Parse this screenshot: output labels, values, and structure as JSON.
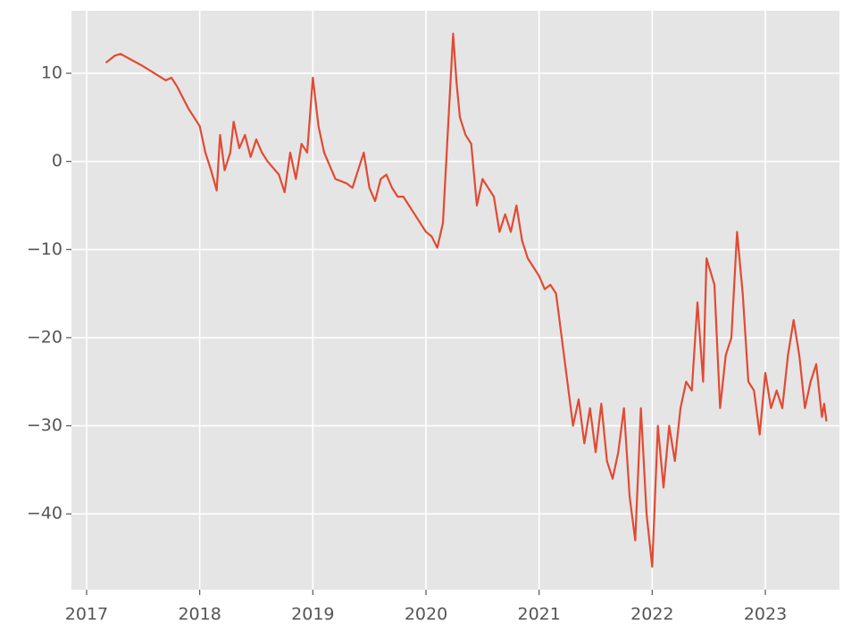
{
  "chart_data": {
    "type": "line",
    "x": [
      2017.17,
      2017.25,
      2017.3,
      2017.4,
      2017.5,
      2017.6,
      2017.7,
      2017.75,
      2017.8,
      2017.9,
      2017.95,
      2018.0,
      2018.05,
      2018.1,
      2018.15,
      2018.18,
      2018.22,
      2018.27,
      2018.3,
      2018.35,
      2018.4,
      2018.45,
      2018.5,
      2018.55,
      2018.6,
      2018.7,
      2018.75,
      2018.8,
      2018.85,
      2018.9,
      2018.95,
      2019.0,
      2019.05,
      2019.1,
      2019.2,
      2019.3,
      2019.35,
      2019.4,
      2019.45,
      2019.5,
      2019.55,
      2019.6,
      2019.65,
      2019.7,
      2019.75,
      2019.8,
      2019.9,
      2020.0,
      2020.05,
      2020.1,
      2020.15,
      2020.2,
      2020.24,
      2020.27,
      2020.3,
      2020.35,
      2020.4,
      2020.45,
      2020.5,
      2020.55,
      2020.6,
      2020.65,
      2020.7,
      2020.75,
      2020.8,
      2020.85,
      2020.9,
      2021.0,
      2021.05,
      2021.1,
      2021.15,
      2021.2,
      2021.25,
      2021.3,
      2021.35,
      2021.4,
      2021.45,
      2021.5,
      2021.55,
      2021.6,
      2021.65,
      2021.7,
      2021.75,
      2021.8,
      2021.85,
      2021.9,
      2021.95,
      2022.0,
      2022.05,
      2022.1,
      2022.15,
      2022.2,
      2022.25,
      2022.3,
      2022.35,
      2022.4,
      2022.45,
      2022.48,
      2022.55,
      2022.6,
      2022.65,
      2022.7,
      2022.75,
      2022.8,
      2022.85,
      2022.9,
      2022.95,
      2023.0,
      2023.05,
      2023.1,
      2023.15,
      2023.2,
      2023.25,
      2023.3,
      2023.35,
      2023.4,
      2023.45,
      2023.5,
      2023.52,
      2023.54
    ],
    "values": [
      11.2,
      12,
      12.2,
      11.5,
      10.8,
      10,
      9.2,
      9.5,
      8.5,
      6,
      5,
      4,
      1,
      -1,
      -3.3,
      3,
      -1,
      1,
      4.5,
      1.5,
      3,
      0.5,
      2.5,
      1,
      0,
      -1.5,
      -3.5,
      1,
      -2,
      2,
      1,
      9.5,
      4,
      1,
      -2,
      -2.5,
      -3,
      -1,
      1,
      -3,
      -4.5,
      -2,
      -1.5,
      -3,
      -4,
      -4,
      -6,
      -8,
      -8.5,
      -9.8,
      -7,
      5,
      14.5,
      9,
      5,
      3,
      2,
      -5,
      -2,
      -3,
      -4,
      -8,
      -6,
      -8,
      -5,
      -9,
      -11,
      -13,
      -14.5,
      -14,
      -15,
      -20,
      -25,
      -30,
      -27,
      -32,
      -28,
      -33,
      -27.5,
      -34,
      -36,
      -33,
      -28,
      -38,
      -43,
      -28,
      -40,
      -46,
      -30,
      -37,
      -30,
      -34,
      -28,
      -25,
      -26,
      -16,
      -25,
      -11,
      -14,
      -28,
      -22,
      -20,
      -8,
      -15,
      -25,
      -26,
      -31,
      -24,
      -28,
      -26,
      -28,
      -22,
      -18,
      -22,
      -28,
      -25,
      -23,
      -29,
      -27.5,
      -29.5
    ],
    "color": "#e24a33",
    "xlim": [
      2016.866,
      2023.655
    ],
    "xticks": [
      2017,
      2018,
      2019,
      2020,
      2021,
      2022,
      2023
    ],
    "ylim": [
      -48.6,
      17.1
    ],
    "yticks": [
      {
        "value": -40,
        "label": "−40"
      },
      {
        "value": -30,
        "label": "−30"
      },
      {
        "value": -20,
        "label": "−20"
      },
      {
        "value": -10,
        "label": "−10"
      },
      0,
      10
    ],
    "grid": true
  }
}
